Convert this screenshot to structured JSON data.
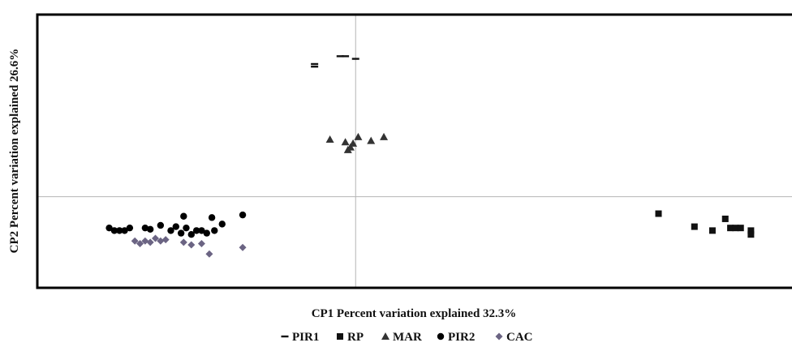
{
  "chart_data": {
    "type": "scatter",
    "title": "",
    "xlabel": "CP1  Percent variation explained 32.3%",
    "ylabel": "CP2 Percent variation explained 26.6%",
    "xlim": [
      -6.2,
      8.5
    ],
    "ylim": [
      -3.5,
      7.0
    ],
    "grid": false,
    "legend_position": "bottom",
    "series": [
      {
        "name": "PIR1",
        "marker": "dash",
        "color": "#111111",
        "points": [
          [
            -0.8,
            5.1
          ],
          [
            -0.8,
            5.0
          ],
          [
            -0.3,
            5.4
          ],
          [
            -0.2,
            5.4
          ],
          [
            0.0,
            5.3
          ]
        ]
      },
      {
        "name": "RP",
        "marker": "square",
        "color": "#111111",
        "points": [
          [
            5.9,
            -0.65
          ],
          [
            6.6,
            -1.15
          ],
          [
            6.95,
            -1.3
          ],
          [
            7.2,
            -0.85
          ],
          [
            7.3,
            -1.2
          ],
          [
            7.4,
            -1.2
          ],
          [
            7.5,
            -1.2
          ],
          [
            7.7,
            -1.3
          ],
          [
            7.7,
            -1.45
          ]
        ]
      },
      {
        "name": "MAR",
        "marker": "triangle",
        "color": "#333333",
        "points": [
          [
            -0.5,
            2.2
          ],
          [
            -0.2,
            2.1
          ],
          [
            -0.15,
            1.8
          ],
          [
            -0.1,
            1.9
          ],
          [
            -0.05,
            2.05
          ],
          [
            0.05,
            2.3
          ],
          [
            0.3,
            2.15
          ],
          [
            0.55,
            2.3
          ]
        ]
      },
      {
        "name": "PIR2",
        "marker": "circle",
        "color": "#000000",
        "points": [
          [
            -4.8,
            -1.2
          ],
          [
            -4.7,
            -1.3
          ],
          [
            -4.6,
            -1.3
          ],
          [
            -4.5,
            -1.3
          ],
          [
            -4.4,
            -1.2
          ],
          [
            -4.1,
            -1.2
          ],
          [
            -4.0,
            -1.25
          ],
          [
            -3.8,
            -1.1
          ],
          [
            -3.6,
            -1.3
          ],
          [
            -3.5,
            -1.15
          ],
          [
            -3.4,
            -1.4
          ],
          [
            -3.35,
            -0.75
          ],
          [
            -3.3,
            -1.2
          ],
          [
            -3.2,
            -1.45
          ],
          [
            -3.1,
            -1.3
          ],
          [
            -3.0,
            -1.3
          ],
          [
            -2.9,
            -1.4
          ],
          [
            -2.8,
            -0.8
          ],
          [
            -2.75,
            -1.3
          ],
          [
            -2.6,
            -1.05
          ],
          [
            -2.2,
            -0.7
          ]
        ]
      },
      {
        "name": "CAC",
        "marker": "diamond",
        "color": "#6b6483",
        "points": [
          [
            -4.3,
            -1.7
          ],
          [
            -4.2,
            -1.8
          ],
          [
            -4.1,
            -1.7
          ],
          [
            -4.0,
            -1.75
          ],
          [
            -3.9,
            -1.6
          ],
          [
            -3.8,
            -1.7
          ],
          [
            -3.7,
            -1.65
          ],
          [
            -3.35,
            -1.75
          ],
          [
            -3.2,
            -1.85
          ],
          [
            -3.0,
            -1.8
          ],
          [
            -2.85,
            -2.2
          ],
          [
            -2.2,
            -1.95
          ]
        ]
      }
    ]
  }
}
